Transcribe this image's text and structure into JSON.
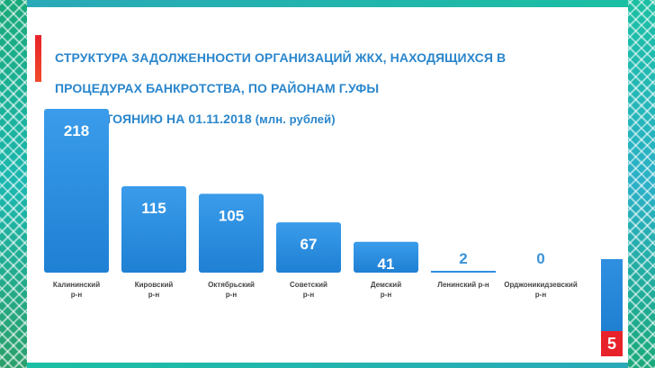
{
  "slide": {
    "title_line1": "СТРУКТУРА ЗАДОЛЖЕННОСТИ ОРГАНИЗАЦИЙ ЖКХ, НАХОДЯЩИХСЯ В",
    "title_line2": "ПРОЦЕДУРАХ БАНКРОТСТВА, ПО РАЙОНАМ Г.УФЫ",
    "title_line3": "ПО СОСТОЯНИЮ НА 01.11.2018",
    "title_unit": "(млн. рублей)",
    "page_number": "5"
  },
  "colors": {
    "bar": "#2f8fe0",
    "accent": "#e8222a",
    "title": "#2a86cc"
  },
  "chart_data": {
    "type": "bar",
    "title": "СТРУКТУРА ЗАДОЛЖЕННОСТИ ОРГАНИЗАЦИЙ ЖКХ, НАХОДЯЩИХСЯ В ПРОЦЕДУРАХ БАНКРОТСТВА, ПО РАЙОНАМ Г.УФЫ ПО СОСТОЯНИЮ НА 01.11.2018 (млн. рублей)",
    "categories": [
      [
        "Калининский",
        "р-н"
      ],
      [
        "Кировский",
        "р-н"
      ],
      [
        "Октябрьский",
        "р-н"
      ],
      [
        "Советский",
        "р-н"
      ],
      [
        "Демский",
        "р-н"
      ],
      [
        "Ленинский  р-н"
      ],
      [
        "Орджоникидзевский",
        "р-н"
      ]
    ],
    "values": [
      218,
      115,
      105,
      67,
      41,
      2,
      0
    ],
    "ylim": [
      0,
      218
    ],
    "grid": false,
    "legend": "none"
  }
}
